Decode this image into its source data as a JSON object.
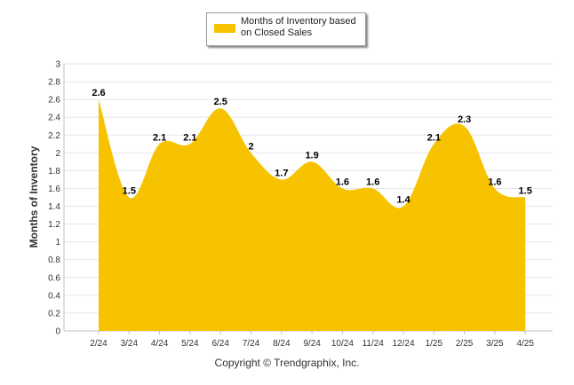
{
  "chart_data": {
    "type": "area",
    "title": "",
    "xlabel": "",
    "ylabel": "Months of Inventory",
    "ylim": [
      0,
      3
    ],
    "ytick_step": 0.2,
    "yticks": [
      "0",
      "0.2",
      "0.4",
      "0.6",
      "0.8",
      "1",
      "1.2",
      "1.4",
      "1.6",
      "1.8",
      "2",
      "2.2",
      "2.4",
      "2.6",
      "2.8",
      "3"
    ],
    "grid": true,
    "legend_placement": "top-center",
    "categories": [
      "2/24",
      "3/24",
      "4/24",
      "5/24",
      "6/24",
      "7/24",
      "8/24",
      "9/24",
      "10/24",
      "11/24",
      "12/24",
      "1/25",
      "2/25",
      "3/25",
      "4/25"
    ],
    "series": [
      {
        "name": "Months of Inventory based on Closed Sales",
        "values": [
          2.6,
          1.5,
          2.1,
          2.1,
          2.5,
          2.0,
          1.7,
          1.9,
          1.6,
          1.6,
          1.4,
          2.1,
          2.3,
          1.6,
          1.5
        ],
        "labels": [
          "2.6",
          "1.5",
          "2.1",
          "2.1",
          "2.5",
          "2",
          "1.7",
          "1.9",
          "1.6",
          "1.6",
          "1.4",
          "2.1",
          "2.3",
          "1.6",
          "1.5"
        ],
        "color": "#F7C300"
      }
    ]
  },
  "legend": {
    "label": "Months of Inventory based on Closed Sales"
  },
  "footer": {
    "copyright": "Copyright © Trendgraphix, Inc."
  }
}
